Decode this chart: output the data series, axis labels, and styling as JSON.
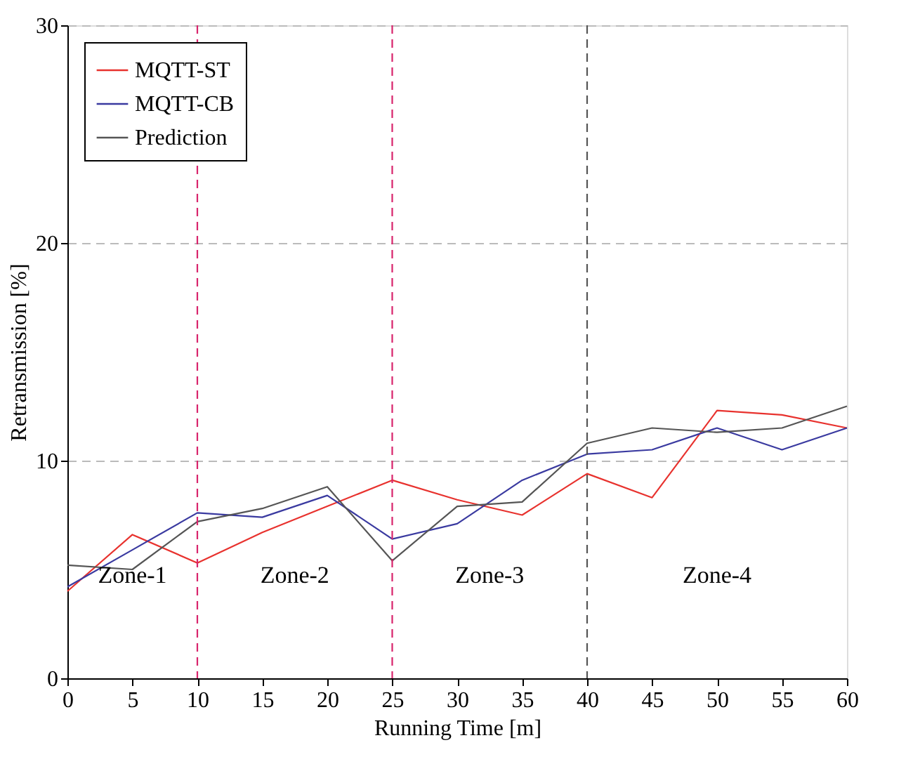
{
  "chart_data": {
    "type": "line",
    "xlabel": "Running Time [m]",
    "ylabel": "Retransmission  [%]",
    "x": [
      0,
      5,
      10,
      15,
      20,
      25,
      30,
      35,
      40,
      45,
      50,
      55,
      60
    ],
    "series": [
      {
        "name": "MQTT-ST",
        "color": "#e8322e",
        "values": [
          4.0,
          6.6,
          5.3,
          6.7,
          7.9,
          9.1,
          8.2,
          7.5,
          9.4,
          8.3,
          12.3,
          12.1,
          11.5
        ]
      },
      {
        "name": "MQTT-CB",
        "color": "#3a3aa0",
        "values": [
          4.2,
          5.9,
          7.6,
          7.4,
          8.4,
          6.4,
          7.1,
          9.1,
          10.3,
          10.5,
          11.5,
          10.5,
          11.5
        ]
      },
      {
        "name": "Prediction",
        "color": "#555555",
        "values": [
          5.2,
          5.0,
          7.2,
          7.8,
          8.8,
          5.4,
          7.9,
          8.1,
          10.8,
          11.5,
          11.3,
          11.5,
          12.5
        ]
      }
    ],
    "xlim": [
      0,
      60
    ],
    "xticks": [
      0,
      5,
      10,
      15,
      20,
      25,
      30,
      35,
      40,
      45,
      50,
      55,
      60
    ],
    "ylim": [
      0,
      30
    ],
    "yticks": [
      0,
      10,
      20,
      30
    ],
    "ref_lines": [
      {
        "axis": "x",
        "value": 10,
        "color": "#d8246c",
        "line_style": "dashed"
      },
      {
        "axis": "x",
        "value": 25,
        "color": "#d8246c",
        "line_style": "dashed"
      },
      {
        "axis": "x",
        "value": 40,
        "color": "#555555",
        "line_style": "dashed"
      }
    ],
    "annotations": [
      "Zone-1",
      "Zone-2",
      "Zone-3",
      "Zone-4"
    ],
    "grid": "y",
    "legend": "top left",
    "line_style": "solid",
    "marker": "none"
  }
}
